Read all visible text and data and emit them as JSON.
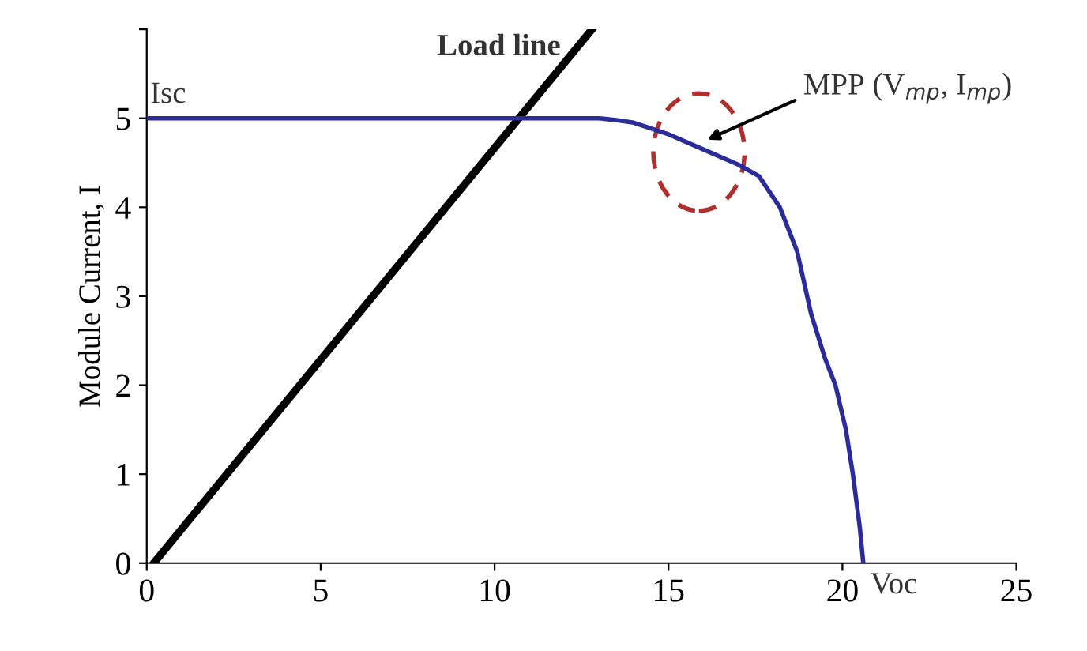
{
  "chart_data": {
    "type": "line",
    "ylabel": "Module Current, I",
    "xlim": [
      0,
      25
    ],
    "ylim": [
      0,
      6
    ],
    "xticks": [
      0,
      5,
      10,
      15,
      20,
      25
    ],
    "yticks": [
      0,
      1,
      2,
      3,
      4,
      5,
      {
        "value": 6,
        "label": null
      }
    ],
    "grid": false,
    "legend": false,
    "marker": "none",
    "line_style": "solid",
    "series": [
      {
        "x": [
          0,
          13,
          13.5,
          14,
          15,
          16,
          17,
          17.6,
          18.2,
          18.7,
          19.1,
          19.5,
          19.8,
          20.1,
          20.3,
          20.5,
          20.6
        ],
        "values": [
          5,
          5,
          4.98,
          4.95,
          4.82,
          4.65,
          4.48,
          4.35,
          4.0,
          3.5,
          2.8,
          2.3,
          2.0,
          1.5,
          1.0,
          0.4,
          0
        ],
        "color": "#2b2b9a"
      },
      {
        "name": "Load line",
        "x": [
          0.2,
          12.8
        ],
        "values": [
          0,
          6
        ],
        "color": "#000000"
      }
    ],
    "annotations": [
      {
        "text": "Isc",
        "x": 0,
        "y": 5
      },
      {
        "text": "Voc",
        "x": 20.6,
        "y": 0
      },
      "MPP (V$_{mp}$, I$_{mp}$)"
    ]
  }
}
